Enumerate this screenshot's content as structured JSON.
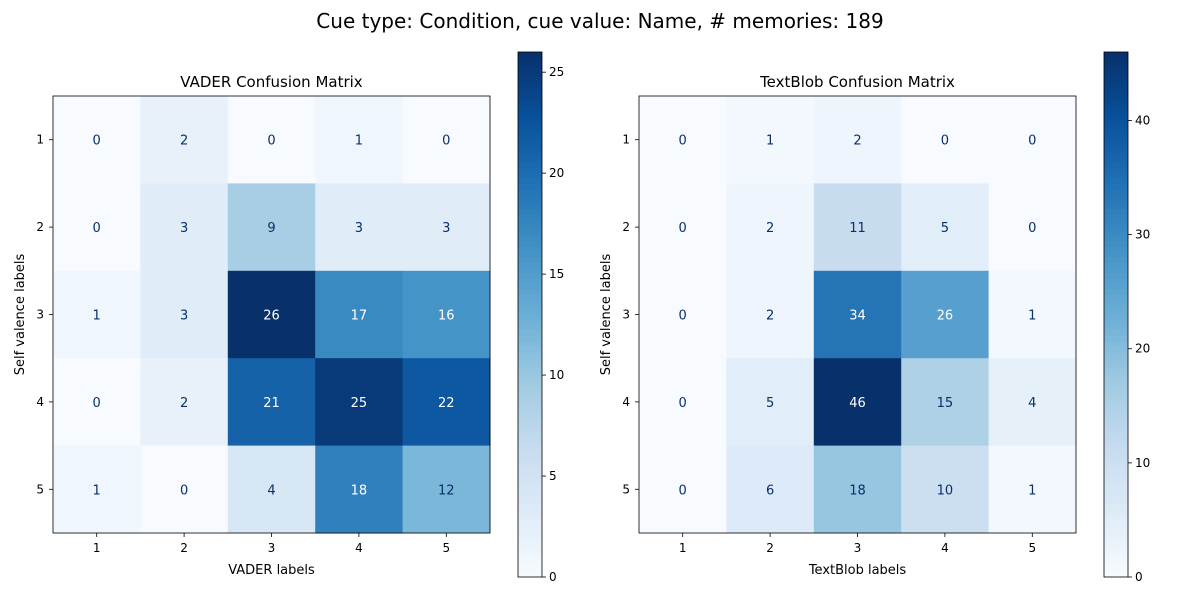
{
  "figure": {
    "title": "Cue type: Condition, cue value: Name, # memories: 189"
  },
  "chart_data": [
    {
      "type": "heatmap",
      "title": "VADER Confusion Matrix",
      "xlabel": "VADER labels",
      "ylabel": "Self valence labels",
      "x_categories": [
        "1",
        "2",
        "3",
        "4",
        "5"
      ],
      "y_categories": [
        "1",
        "2",
        "3",
        "4",
        "5"
      ],
      "values": [
        [
          0,
          2,
          0,
          1,
          0
        ],
        [
          0,
          3,
          9,
          3,
          3
        ],
        [
          1,
          3,
          26,
          17,
          16
        ],
        [
          0,
          2,
          21,
          25,
          22
        ],
        [
          1,
          0,
          4,
          18,
          12
        ]
      ],
      "colormap": "Blues",
      "vmin": 0,
      "vmax": 26,
      "colorbar_ticks": [
        0,
        5,
        10,
        15,
        20,
        25
      ],
      "grid": false
    },
    {
      "type": "heatmap",
      "title": "TextBlob Confusion Matrix",
      "xlabel": "TextBlob labels",
      "ylabel": "Self valence labels",
      "x_categories": [
        "1",
        "2",
        "3",
        "4",
        "5"
      ],
      "y_categories": [
        "1",
        "2",
        "3",
        "4",
        "5"
      ],
      "values": [
        [
          0,
          1,
          2,
          0,
          0
        ],
        [
          0,
          2,
          11,
          5,
          0
        ],
        [
          0,
          2,
          34,
          26,
          1
        ],
        [
          0,
          5,
          46,
          15,
          4
        ],
        [
          0,
          6,
          18,
          10,
          1
        ]
      ],
      "colormap": "Blues",
      "vmin": 0,
      "vmax": 46,
      "colorbar_ticks": [
        0,
        10,
        20,
        30,
        40
      ],
      "grid": false
    }
  ]
}
